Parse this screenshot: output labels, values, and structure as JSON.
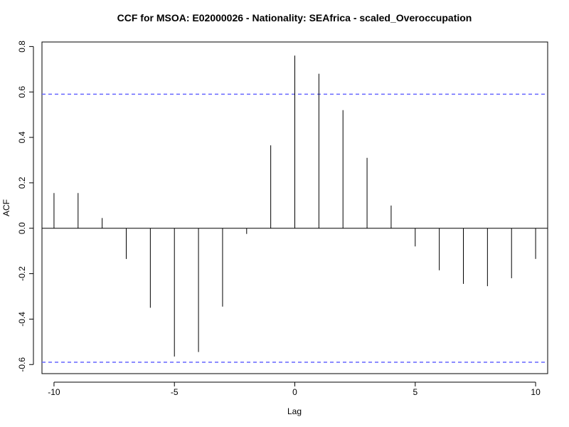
{
  "chart_data": {
    "type": "bar",
    "title": "CCF for MSOA: E02000026 - Nationality: SEAfrica - scaled_Overoccupation",
    "xlabel": "Lag",
    "ylabel": "ACF",
    "x": [
      -10,
      -9,
      -8,
      -7,
      -6,
      -5,
      -4,
      -3,
      -2,
      -1,
      0,
      1,
      2,
      3,
      4,
      5,
      6,
      7,
      8,
      9,
      10
    ],
    "values": [
      0.155,
      0.155,
      0.045,
      -0.135,
      -0.35,
      -0.565,
      -0.545,
      -0.345,
      -0.025,
      0.365,
      0.76,
      0.68,
      0.52,
      0.31,
      0.1,
      -0.08,
      -0.185,
      -0.245,
      -0.255,
      -0.22,
      -0.135
    ],
    "xlim": [
      -10.5,
      10.5
    ],
    "ylim": [
      -0.64,
      0.82
    ],
    "x_ticks": [
      "-10",
      "-5",
      "0",
      "5",
      "10"
    ],
    "x_tick_values": [
      -10,
      -5,
      0,
      5,
      10
    ],
    "y_ticks": [
      "-0.6",
      "-0.4",
      "-0.2",
      "0.0",
      "0.2",
      "0.4",
      "0.6",
      "0.8"
    ],
    "y_tick_values": [
      -0.6,
      -0.4,
      -0.2,
      0.0,
      0.2,
      0.4,
      0.6,
      0.8
    ],
    "confidence_bound": 0.59,
    "bound_color": "#6666ff",
    "bar_color": "#000000"
  }
}
